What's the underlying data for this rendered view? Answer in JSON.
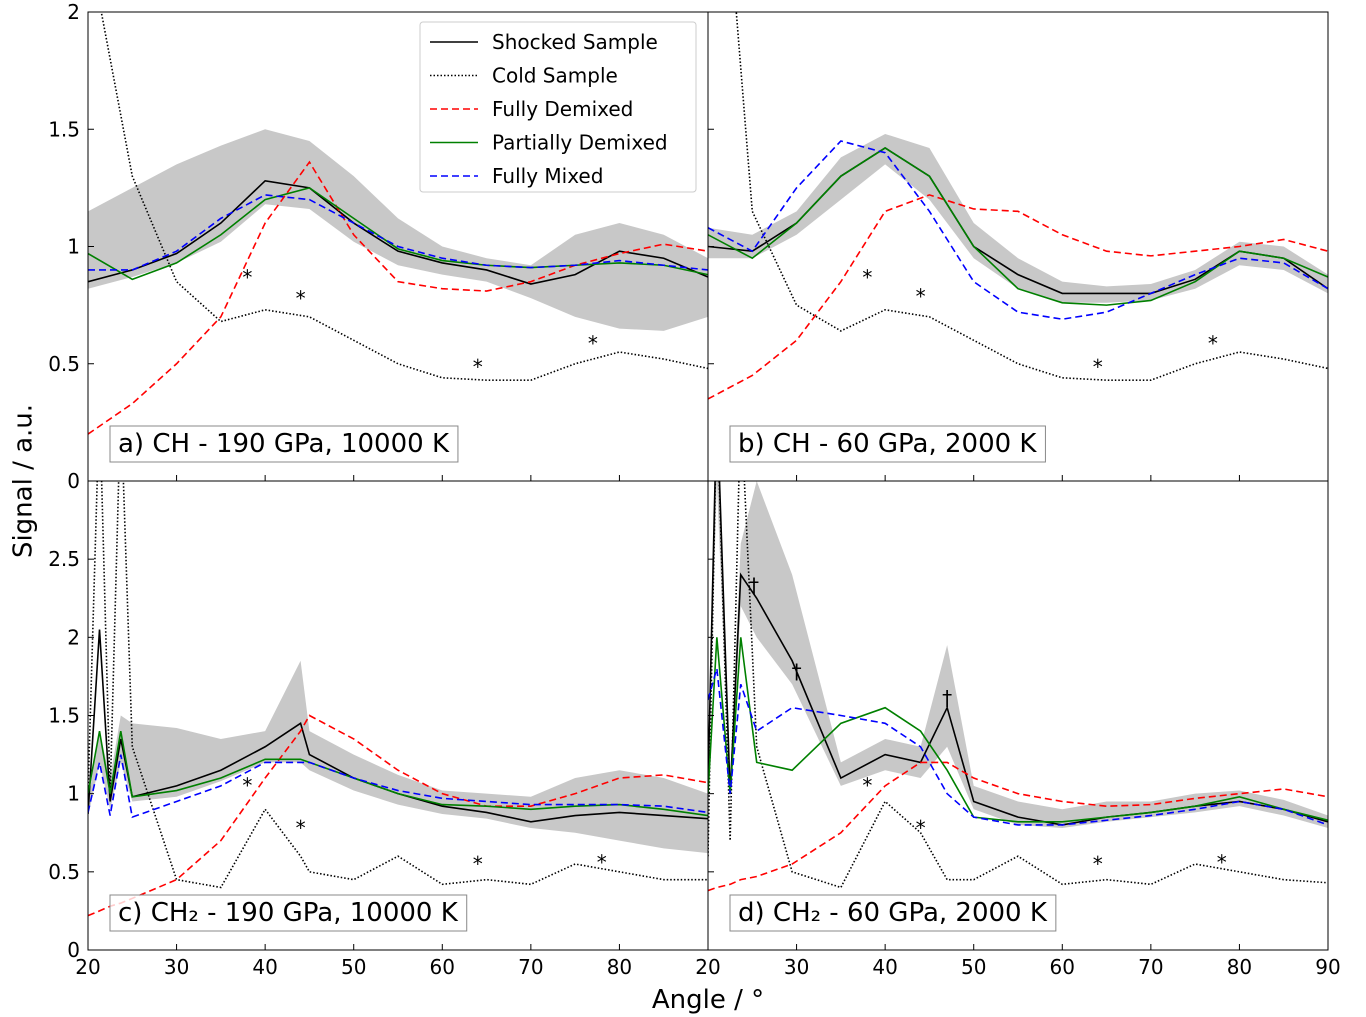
{
  "xlabel": "Angle / °",
  "ylabel": "Signal / a.u.",
  "chart_data": [
    {
      "type": "line",
      "label": "a) CH - 190 GPa, 10000 K",
      "xlim": [
        20,
        90
      ],
      "ylim": [
        0,
        2
      ],
      "xticks": [
        20,
        30,
        40,
        50,
        60,
        70,
        80
      ],
      "yticks": [
        0,
        0.5,
        1,
        1.5,
        2
      ],
      "x": [
        20,
        25,
        30,
        35,
        40,
        45,
        50,
        55,
        60,
        65,
        70,
        75,
        80,
        85,
        90
      ],
      "band": {
        "color": "#c8c8c8",
        "lower": [
          0.82,
          0.87,
          0.93,
          1.02,
          1.18,
          1.16,
          1.02,
          0.92,
          0.88,
          0.85,
          0.78,
          0.7,
          0.65,
          0.64,
          0.7
        ],
        "upper": [
          1.15,
          1.25,
          1.35,
          1.43,
          1.5,
          1.45,
          1.3,
          1.12,
          1.0,
          0.95,
          0.92,
          1.05,
          1.1,
          1.05,
          0.95
        ]
      },
      "series": [
        {
          "name": "Shocked Sample",
          "color": "#000000",
          "dash": "solid",
          "values": [
            0.85,
            0.9,
            0.97,
            1.1,
            1.28,
            1.25,
            1.1,
            0.98,
            0.93,
            0.9,
            0.84,
            0.88,
            0.98,
            0.95,
            0.87
          ]
        },
        {
          "name": "Cold Sample",
          "color": "#000000",
          "dash": "dotted",
          "values": [
            2.3,
            1.3,
            0.85,
            0.68,
            0.73,
            0.7,
            0.6,
            0.5,
            0.44,
            0.43,
            0.43,
            0.5,
            0.55,
            0.52,
            0.48
          ]
        },
        {
          "name": "Fully Demixed",
          "color": "#ff0000",
          "dash": "dashed",
          "values": [
            0.2,
            0.33,
            0.5,
            0.7,
            1.1,
            1.36,
            1.05,
            0.85,
            0.82,
            0.81,
            0.85,
            0.92,
            0.97,
            1.01,
            0.98
          ]
        },
        {
          "name": "Partially Demixed",
          "color": "#008000",
          "dash": "solid",
          "values": [
            0.97,
            0.86,
            0.93,
            1.05,
            1.2,
            1.25,
            1.12,
            0.99,
            0.94,
            0.92,
            0.91,
            0.92,
            0.93,
            0.92,
            0.88
          ]
        },
        {
          "name": "Fully Mixed",
          "color": "#0000ff",
          "dash": "dashed",
          "values": [
            0.9,
            0.9,
            0.98,
            1.12,
            1.22,
            1.2,
            1.1,
            1.0,
            0.95,
            0.92,
            0.91,
            0.92,
            0.94,
            0.92,
            0.9
          ]
        }
      ],
      "annotations": [
        {
          "x": 38,
          "y": 0.88,
          "text": "*"
        },
        {
          "x": 44,
          "y": 0.79,
          "text": "*"
        },
        {
          "x": 64,
          "y": 0.5,
          "text": "*"
        },
        {
          "x": 77,
          "y": 0.6,
          "text": "*"
        }
      ]
    },
    {
      "type": "line",
      "label": "b) CH - 60 GPa, 2000 K",
      "xlim": [
        20,
        90
      ],
      "ylim": [
        0,
        2
      ],
      "xticks": [
        20,
        30,
        40,
        50,
        60,
        70,
        80,
        90
      ],
      "yticks": [
        0,
        0.5,
        1,
        1.5,
        2
      ],
      "x": [
        20,
        25,
        30,
        35,
        40,
        45,
        50,
        55,
        60,
        65,
        70,
        75,
        80,
        85,
        90
      ],
      "band": {
        "color": "#c8c8c8",
        "lower": [
          0.95,
          0.95,
          1.05,
          1.2,
          1.35,
          1.2,
          0.95,
          0.82,
          0.76,
          0.76,
          0.77,
          0.82,
          0.92,
          0.9,
          0.8
        ],
        "upper": [
          1.08,
          1.05,
          1.15,
          1.38,
          1.48,
          1.42,
          1.1,
          0.95,
          0.85,
          0.83,
          0.84,
          0.9,
          1.02,
          1.0,
          0.88
        ]
      },
      "series": [
        {
          "color": "#000000",
          "dash": "solid",
          "values": [
            1.0,
            0.98,
            1.1,
            1.3,
            1.42,
            1.3,
            1.0,
            0.88,
            0.8,
            0.8,
            0.8,
            0.86,
            0.98,
            0.95,
            0.82
          ]
        },
        {
          "color": "#000000",
          "dash": "dotted",
          "values": [
            3.5,
            1.15,
            0.75,
            0.64,
            0.73,
            0.7,
            0.6,
            0.5,
            0.44,
            0.43,
            0.43,
            0.5,
            0.55,
            0.52,
            0.48
          ]
        },
        {
          "color": "#ff0000",
          "dash": "dashed",
          "values": [
            0.35,
            0.45,
            0.6,
            0.85,
            1.15,
            1.22,
            1.16,
            1.15,
            1.05,
            0.98,
            0.96,
            0.98,
            1.0,
            1.03,
            0.98
          ]
        },
        {
          "color": "#008000",
          "dash": "solid",
          "values": [
            1.05,
            0.95,
            1.1,
            1.3,
            1.42,
            1.3,
            1.0,
            0.82,
            0.76,
            0.75,
            0.77,
            0.85,
            0.98,
            0.95,
            0.87
          ]
        },
        {
          "color": "#0000ff",
          "dash": "dashed",
          "values": [
            1.08,
            0.98,
            1.25,
            1.45,
            1.4,
            1.15,
            0.85,
            0.72,
            0.69,
            0.72,
            0.8,
            0.88,
            0.95,
            0.93,
            0.82
          ]
        }
      ],
      "annotations": [
        {
          "x": 38,
          "y": 0.88,
          "text": "*"
        },
        {
          "x": 44,
          "y": 0.8,
          "text": "*"
        },
        {
          "x": 64,
          "y": 0.5,
          "text": "*"
        },
        {
          "x": 77,
          "y": 0.6,
          "text": "*"
        }
      ]
    },
    {
      "type": "line",
      "label": "c) CH₂ - 190 GPa, 10000 K",
      "xlim": [
        20,
        90
      ],
      "ylim": [
        0,
        3
      ],
      "xticks": [
        20,
        30,
        40,
        50,
        60,
        70,
        80
      ],
      "yticks": [
        0,
        0.5,
        1,
        1.5,
        2,
        2.5
      ],
      "x": [
        20,
        21.3,
        22.5,
        23.7,
        25,
        30,
        35,
        40,
        44,
        45,
        50,
        55,
        60,
        65,
        70,
        75,
        80,
        85,
        90
      ],
      "band": {
        "color": "#c8c8c8",
        "lower": [
          0.85,
          1.2,
          0.9,
          1.2,
          0.95,
          0.98,
          1.08,
          1.2,
          1.2,
          1.15,
          1.02,
          0.93,
          0.87,
          0.84,
          0.78,
          0.75,
          0.7,
          0.65,
          0.62
        ],
        "upper": [
          0.95,
          1.4,
          1.1,
          1.5,
          1.45,
          1.42,
          1.35,
          1.4,
          1.85,
          1.4,
          1.25,
          1.12,
          1.02,
          1.0,
          0.98,
          1.1,
          1.15,
          1.1,
          1.0
        ]
      },
      "series": [
        {
          "color": "#000000",
          "dash": "solid",
          "values": [
            0.87,
            2.05,
            0.95,
            1.35,
            0.98,
            1.05,
            1.15,
            1.3,
            1.45,
            1.25,
            1.1,
            1.0,
            0.92,
            0.88,
            0.82,
            0.86,
            0.88,
            0.86,
            0.84
          ]
        },
        {
          "color": "#000000",
          "dash": "dotted",
          "values": [
            1.0,
            3.5,
            1.0,
            3.5,
            1.3,
            0.45,
            0.4,
            0.9,
            0.6,
            0.5,
            0.45,
            0.6,
            0.42,
            0.45,
            0.42,
            0.55,
            0.5,
            0.45,
            0.45
          ]
        },
        {
          "color": "#ff0000",
          "dash": "dashed",
          "values": [
            0.22,
            0.25,
            0.28,
            0.3,
            0.33,
            0.45,
            0.7,
            1.1,
            1.4,
            1.5,
            1.35,
            1.15,
            1.0,
            0.92,
            0.92,
            1.0,
            1.1,
            1.12,
            1.07
          ]
        },
        {
          "color": "#008000",
          "dash": "solid",
          "values": [
            1.0,
            1.4,
            1.0,
            1.4,
            0.98,
            1.02,
            1.1,
            1.22,
            1.22,
            1.2,
            1.1,
            1.0,
            0.93,
            0.92,
            0.9,
            0.92,
            0.93,
            0.9,
            0.86
          ]
        },
        {
          "color": "#0000ff",
          "dash": "dashed",
          "values": [
            0.88,
            1.2,
            0.86,
            1.25,
            0.85,
            0.95,
            1.05,
            1.2,
            1.2,
            1.2,
            1.1,
            1.02,
            0.97,
            0.95,
            0.93,
            0.93,
            0.93,
            0.92,
            0.88
          ]
        }
      ],
      "annotations": [
        {
          "x": 38,
          "y": 1.07,
          "text": "*"
        },
        {
          "x": 44,
          "y": 0.8,
          "text": "*"
        },
        {
          "x": 64,
          "y": 0.57,
          "text": "*"
        },
        {
          "x": 78,
          "y": 0.58,
          "text": "*"
        }
      ]
    },
    {
      "type": "line",
      "label": "d) CH₂ - 60 GPa, 2000 K",
      "xlim": [
        20,
        90
      ],
      "ylim": [
        0,
        3
      ],
      "xticks": [
        20,
        30,
        40,
        50,
        60,
        70,
        80,
        90
      ],
      "yticks": [
        0,
        0.5,
        1,
        1.5,
        2,
        2.5
      ],
      "x": [
        20,
        21,
        22.5,
        23.7,
        25.5,
        29.5,
        35,
        40,
        44,
        47,
        50,
        55,
        60,
        65,
        70,
        75,
        80,
        85,
        90
      ],
      "band": {
        "color": "#c8c8c8",
        "lower": [
          1.0,
          3.0,
          0.95,
          2.2,
          2.0,
          1.7,
          1.05,
          1.15,
          1.1,
          1.3,
          0.9,
          0.8,
          0.78,
          0.82,
          0.85,
          0.88,
          0.92,
          0.86,
          0.78
        ],
        "upper": [
          1.2,
          3.5,
          1.1,
          2.6,
          3.0,
          2.4,
          1.2,
          1.35,
          1.3,
          1.95,
          1.05,
          0.95,
          0.9,
          0.95,
          0.95,
          1.0,
          1.02,
          0.96,
          0.86
        ]
      },
      "series": [
        {
          "color": "#000000",
          "dash": "solid",
          "values": [
            1.05,
            3.5,
            1.0,
            2.4,
            2.25,
            1.85,
            1.1,
            1.25,
            1.2,
            1.55,
            0.95,
            0.85,
            0.8,
            0.85,
            0.88,
            0.92,
            0.95,
            0.9,
            0.82
          ]
        },
        {
          "color": "#000000",
          "dash": "dotted",
          "values": [
            0.6,
            3.5,
            0.7,
            3.5,
            1.3,
            0.5,
            0.4,
            0.95,
            0.75,
            0.45,
            0.45,
            0.6,
            0.42,
            0.45,
            0.42,
            0.55,
            0.5,
            0.45,
            0.43
          ]
        },
        {
          "color": "#ff0000",
          "dash": "dashed",
          "values": [
            0.38,
            0.4,
            0.42,
            0.45,
            0.47,
            0.55,
            0.75,
            1.05,
            1.2,
            1.2,
            1.1,
            1.0,
            0.95,
            0.92,
            0.93,
            0.97,
            1.0,
            1.03,
            0.98
          ]
        },
        {
          "color": "#008000",
          "dash": "solid",
          "values": [
            1.0,
            2.0,
            1.0,
            2.0,
            1.2,
            1.15,
            1.45,
            1.55,
            1.4,
            1.15,
            0.85,
            0.82,
            0.82,
            0.85,
            0.88,
            0.92,
            0.98,
            0.9,
            0.83
          ]
        },
        {
          "color": "#0000ff",
          "dash": "dashed",
          "values": [
            1.6,
            1.8,
            1.0,
            1.7,
            1.4,
            1.55,
            1.5,
            1.45,
            1.3,
            1.0,
            0.85,
            0.8,
            0.8,
            0.83,
            0.86,
            0.9,
            0.95,
            0.9,
            0.8
          ]
        }
      ],
      "annotations": [
        {
          "x": 38,
          "y": 1.07,
          "text": "*"
        },
        {
          "x": 44,
          "y": 0.8,
          "text": "*"
        },
        {
          "x": 64,
          "y": 0.57,
          "text": "*"
        },
        {
          "x": 78,
          "y": 0.58,
          "text": "*"
        },
        {
          "x": 25.2,
          "y": 2.35,
          "text": "†"
        },
        {
          "x": 30,
          "y": 1.8,
          "text": "†"
        },
        {
          "x": 47,
          "y": 1.63,
          "text": "†"
        }
      ]
    }
  ]
}
